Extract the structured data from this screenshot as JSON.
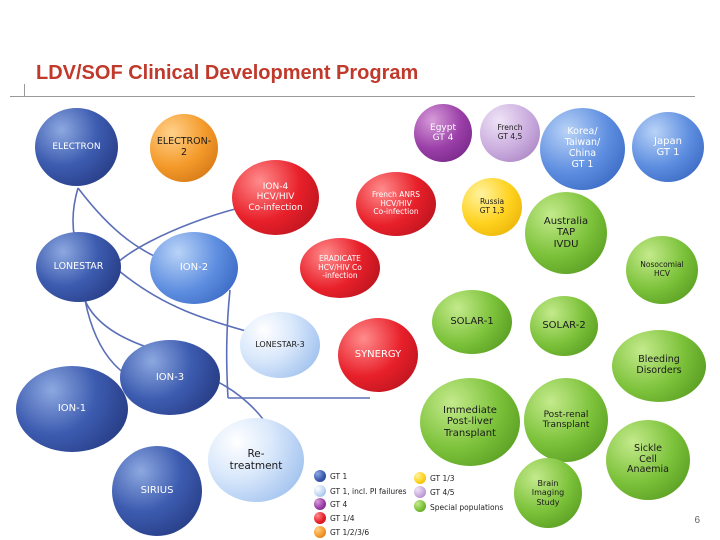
{
  "title": "LDV/SOF Clinical Development Program",
  "page_number": "6",
  "nodes": {
    "electron": "ELECTRON",
    "electron2": "ELECTRON-\n2",
    "egypt": "Egypt\nGT 4",
    "french45": "French\nGT 4,5",
    "korea": "Korea/\nTaiwan/\nChina\nGT 1",
    "japan": "Japan\nGT 1",
    "ion4": "ION-4\nHCV/HIV\nCo-infection",
    "french_anrs": "French ANRS\nHCV/HIV\nCo-infection",
    "russia": "Russia\nGT 1,3",
    "australia": "Australia\nTAP\nIVDU",
    "lonestar": "LONESTAR",
    "ion2": "ION-2",
    "eradicate": "ERADICATE\nHCV/HIV Co\n-infection",
    "nosocomial": "Nosocomial\nHCV",
    "solar1": "SOLAR-1",
    "solar2": "SOLAR-2",
    "lonestar3": "LONESTAR-3",
    "synergy": "SYNERGY",
    "bleeding": "Bleeding\nDisorders",
    "ion3": "ION-3",
    "ion1": "ION-1",
    "immediate": "Immediate\nPost-liver\nTransplant",
    "post_renal": "Post-renal\nTransplant",
    "retreatment": "Re-\ntreatment",
    "sickle": "Sickle\nCell\nAnaemia",
    "sirius": "SIRIUS",
    "brain": "Brain\nImaging\nStudy"
  },
  "legend": [
    {
      "label": "GT 1",
      "color": "#3d5cb0"
    },
    {
      "label": "GT 1, incl. PI failures",
      "color": "#8bb3ea"
    },
    {
      "label": "GT 4",
      "color": "#9a3fa8"
    },
    {
      "label": "GT 1/4",
      "color": "#e8202a"
    },
    {
      "label": "GT 1/2/3/6",
      "color": "#f49a2a"
    },
    {
      "label": "GT 1/3",
      "color": "#ffd21f"
    },
    {
      "label": "GT 4/5",
      "color": "#c8a9dc"
    },
    {
      "label": "Special populations",
      "color": "#7cc23a"
    }
  ]
}
